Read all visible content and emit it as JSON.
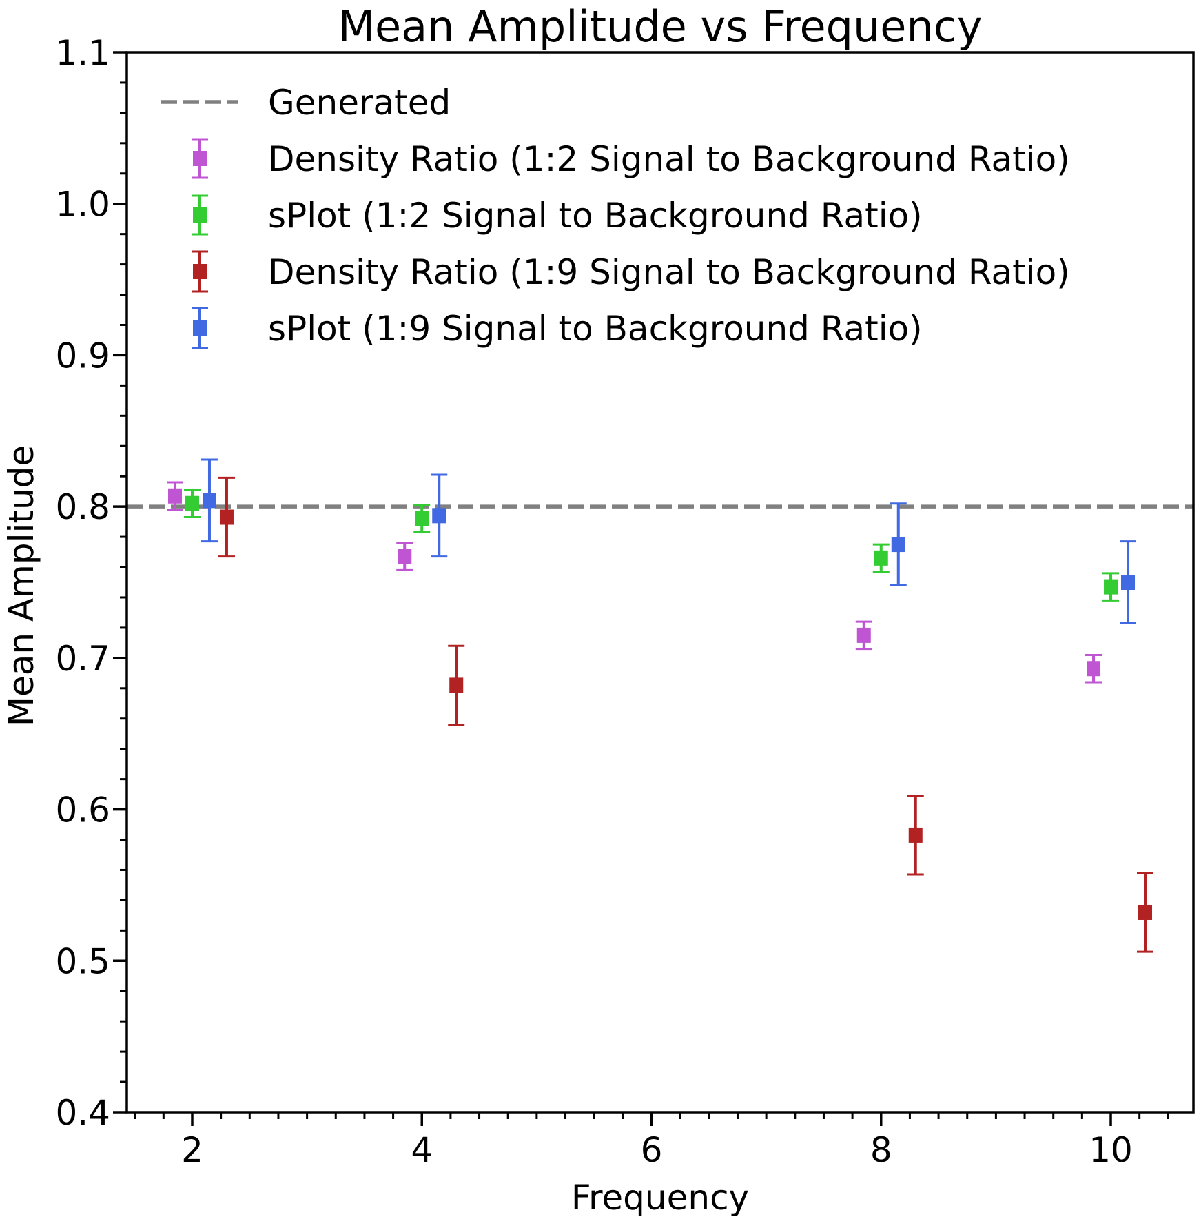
{
  "chart_data": {
    "type": "scatter",
    "title": "Mean Amplitude vs Frequency",
    "xlabel": "Frequency",
    "ylabel": "Mean Amplitude",
    "xlim": [
      1.43,
      10.72
    ],
    "ylim": [
      0.4,
      1.1
    ],
    "x_ticks": [
      2,
      4,
      6,
      8,
      10
    ],
    "x_tick_labels": [
      "2",
      "4",
      "6",
      "8",
      "10"
    ],
    "y_ticks": [
      0.4,
      0.5,
      0.6,
      0.7,
      0.8,
      0.9,
      1.0,
      1.1
    ],
    "y_tick_labels": [
      "0.4",
      "0.5",
      "0.6",
      "0.7",
      "0.8",
      "0.9",
      "1.0",
      "1.1"
    ],
    "grid": false,
    "legend_position": "top-left",
    "reference_line": {
      "name": "Generated",
      "y": 0.8,
      "color": "#808080",
      "style": "dashed"
    },
    "series": [
      {
        "name": "Density Ratio (1:2 Signal to Background Ratio)",
        "color": "#bf55d2",
        "x": [
          1.85,
          3.85,
          7.85,
          9.85
        ],
        "y": [
          0.807,
          0.767,
          0.715,
          0.693
        ],
        "err": [
          0.009,
          0.009,
          0.009,
          0.009
        ]
      },
      {
        "name": "sPlot (1:2 Signal to Background Ratio)",
        "color": "#33cc33",
        "x": [
          2.0,
          4.0,
          8.0,
          10.0
        ],
        "y": [
          0.802,
          0.792,
          0.766,
          0.747
        ],
        "err": [
          0.009,
          0.009,
          0.009,
          0.009
        ]
      },
      {
        "name": "Density Ratio (1:9 Signal to Background Ratio)",
        "color": "#b22222",
        "x": [
          2.3,
          4.3,
          8.3,
          10.3
        ],
        "y": [
          0.793,
          0.682,
          0.583,
          0.532
        ],
        "err": [
          0.026,
          0.026,
          0.026,
          0.026
        ]
      },
      {
        "name": "sPlot (1:9 Signal to Background Ratio)",
        "color": "#4169e1",
        "x": [
          2.15,
          4.15,
          8.15,
          10.15
        ],
        "y": [
          0.804,
          0.794,
          0.775,
          0.75
        ],
        "err": [
          0.027,
          0.027,
          0.027,
          0.027
        ]
      }
    ]
  }
}
